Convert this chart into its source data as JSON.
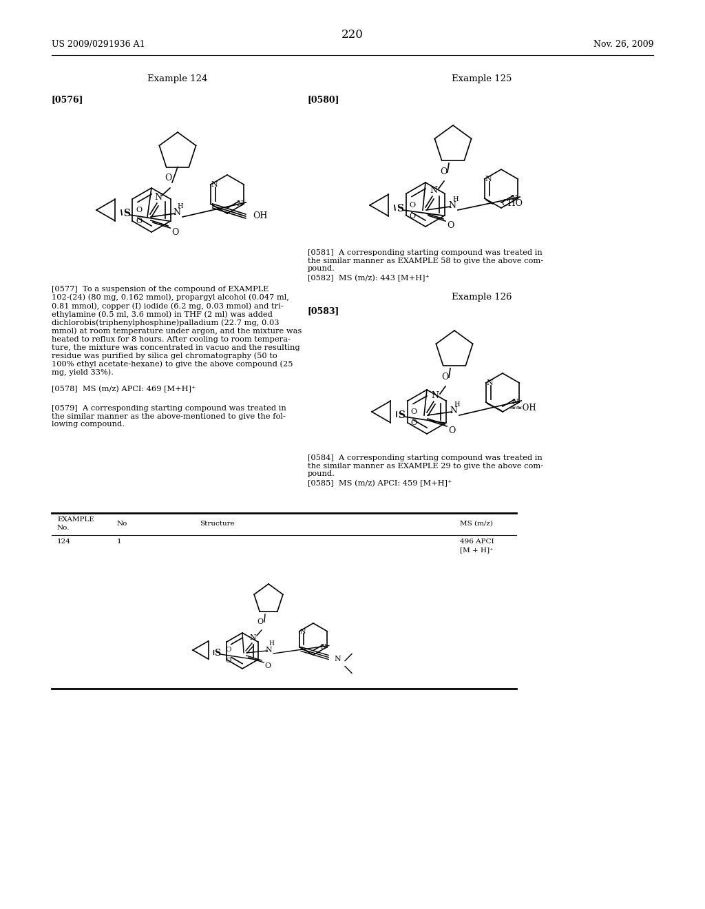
{
  "page_header_left": "US 2009/0291936 A1",
  "page_header_right": "Nov. 26, 2009",
  "page_number": "220",
  "background_color": "#ffffff",
  "text_color": "#000000",
  "example124_title": "Example 124",
  "example125_title": "Example 125",
  "example126_title": "Example 126",
  "para0576": "[0576]",
  "para0577_text": "[0577] To a suspension of the compound of EXAMPLE 102-(24) (80 mg, 0.162 mmol), propargyl alcohol (0.047 ml, 0.81 mmol), copper (I) iodide (6.2 mg, 0.03 mmol) and triethylamine (0.5 ml, 3.6 mmol) in THF (2 ml) was added dichlorobis(triphenylphosphine)palladium (22.7 mg, 0.03 mmol) at room temperature under argon, and the mixture was heated to reflux for 8 hours. After cooling to room temperature, the mixture was concentrated in vacuo and the resulting residue was purified by silica gel chromatography (50 to 100% ethyl acetate-hexane) to give the above compound (25 mg, yield 33%).",
  "para0578": "[0578] MS (m/z) APCI: 469 [M+H]⁺",
  "para0579": "[0579] A corresponding starting compound was treated in the similar manner as the above-mentioned to give the following compound.",
  "para0580": "[0580]",
  "para0581": "[0581] A corresponding starting compound was treated in the similar manner as EXAMPLE 58 to give the above compound.",
  "para0582": "[0582] MS (m/z): 443 [M+H]⁺",
  "para0583": "[0583]",
  "para0584": "[0584] A corresponding starting compound was treated in the similar manner as EXAMPLE 29 to give the above compound.",
  "para0585": "[0585] MS (m/z) APCI: 459 [M+H]⁺",
  "table_header1": "EXAMPLE",
  "table_header2": "No.",
  "table_header3": "No",
  "table_header4": "Structure",
  "table_header5": "MS (m/z)",
  "table_row_example": "124",
  "table_row_no": "1",
  "table_row_ms": "496 APCI\n[M + H]⁺"
}
